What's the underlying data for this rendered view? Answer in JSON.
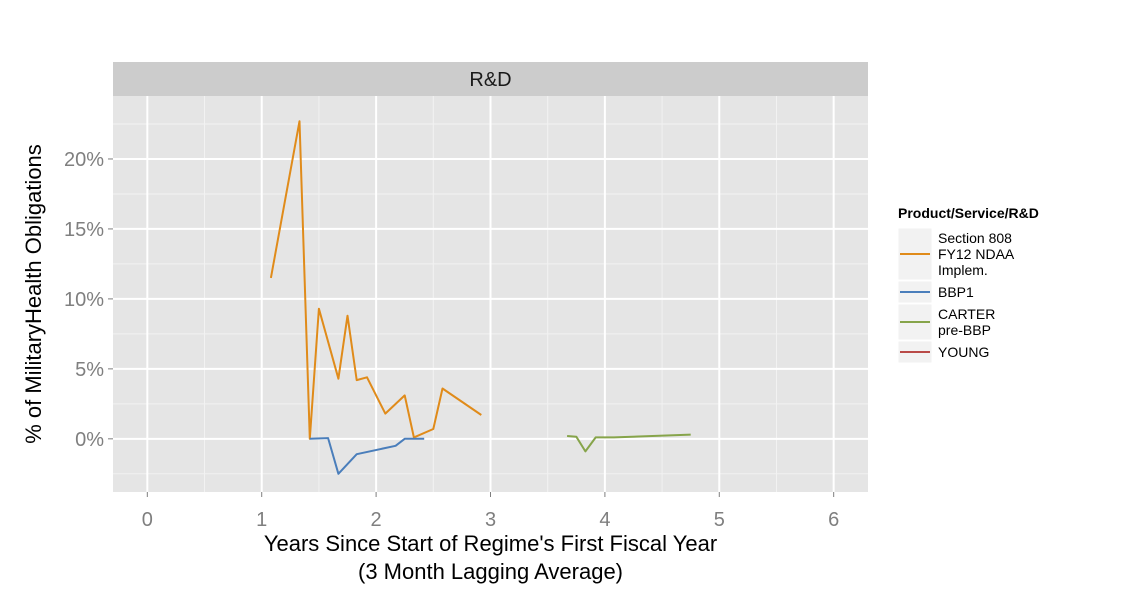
{
  "chart_data": {
    "type": "line",
    "panel_title": "R&D",
    "xlabel": [
      "Years Since Start of Regime's First Fiscal Year",
      "(3 Month Lagging Average)"
    ],
    "ylabel": "% of MilitaryHealth Obligations",
    "xlim": [
      -0.3,
      6.3
    ],
    "ylim": [
      -3.8,
      24.5
    ],
    "x_ticks": [
      0,
      1,
      2,
      3,
      4,
      5,
      6
    ],
    "x_tick_labels": [
      "0",
      "1",
      "2",
      "3",
      "4",
      "5",
      "6"
    ],
    "y_ticks": [
      0,
      5,
      10,
      15,
      20
    ],
    "y_tick_labels": [
      "0%",
      "5%",
      "10%",
      "15%",
      "20%"
    ],
    "grid": true,
    "legend": {
      "title": "Product/Service/R&D",
      "position": "right",
      "entries": [
        {
          "label_lines": [
            "Section 808",
            "FY12 NDAA",
            "Implem."
          ],
          "color": "#E08B1A"
        },
        {
          "label_lines": [
            "BBP1"
          ],
          "color": "#4A7EBB"
        },
        {
          "label_lines": [
            "CARTER",
            "pre-BBP"
          ],
          "color": "#86A44A"
        },
        {
          "label_lines": [
            "YOUNG"
          ],
          "color": "#B94A48"
        }
      ]
    },
    "series": [
      {
        "name": "Section 808 FY12 NDAA Implem.",
        "color": "#E08B1A",
        "points": [
          [
            1.08,
            11.5
          ],
          [
            1.33,
            22.7
          ],
          [
            1.42,
            0.0
          ],
          [
            1.5,
            9.3
          ],
          [
            1.67,
            4.3
          ],
          [
            1.75,
            8.8
          ],
          [
            1.83,
            4.2
          ],
          [
            1.92,
            4.4
          ],
          [
            2.08,
            1.8
          ],
          [
            2.25,
            3.1
          ],
          [
            2.33,
            0.1
          ],
          [
            2.5,
            0.7
          ],
          [
            2.58,
            3.6
          ],
          [
            2.92,
            1.7
          ]
        ]
      },
      {
        "name": "BBP1",
        "color": "#4A7EBB",
        "points": [
          [
            1.42,
            0.0
          ],
          [
            1.58,
            0.05
          ],
          [
            1.67,
            -2.5
          ],
          [
            1.83,
            -1.1
          ],
          [
            2.17,
            -0.5
          ],
          [
            2.25,
            0.0
          ],
          [
            2.42,
            0.0
          ]
        ]
      },
      {
        "name": "CARTER pre-BBP",
        "color": "#86A44A",
        "points": [
          [
            3.67,
            0.2
          ],
          [
            3.75,
            0.15
          ],
          [
            3.83,
            -0.9
          ],
          [
            3.92,
            0.1
          ],
          [
            4.08,
            0.1
          ],
          [
            4.75,
            0.3
          ]
        ]
      },
      {
        "name": "YOUNG",
        "color": "#B94A48",
        "points": []
      }
    ]
  }
}
